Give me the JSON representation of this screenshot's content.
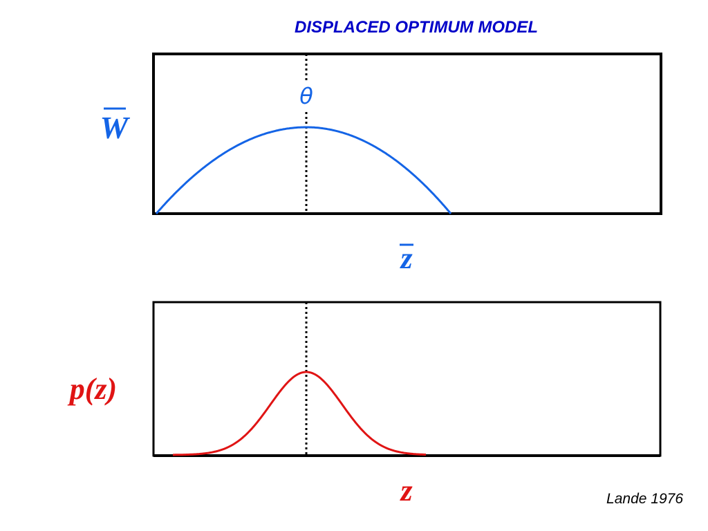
{
  "title": "DISPLACED OPTIMUM MODEL",
  "credit": "Lande 1976",
  "colors": {
    "title": "#0000c8",
    "top_curve": "#1464e6",
    "bottom_curve": "#e01414",
    "frame": "#000000"
  },
  "top_panel": {
    "y_label": "W̄",
    "x_label": "z̄",
    "optimum_label": "θ",
    "curve_shape": "downward parabola with peak at optimum θ"
  },
  "bottom_panel": {
    "y_label": "p(z)",
    "x_label": "z",
    "curve_shape": "bell-shaped (Gaussian) distribution centered at optimum"
  }
}
